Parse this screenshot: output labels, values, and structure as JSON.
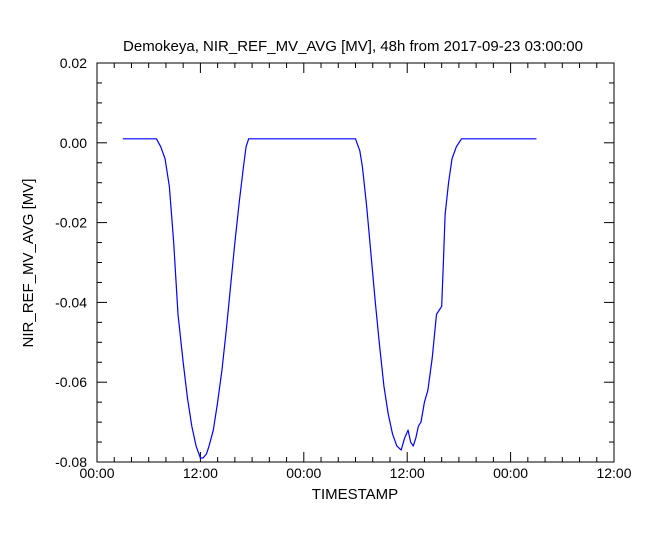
{
  "chart_data": {
    "type": "line",
    "title": "Demokeya, NIR_REF_MV_AVG [MV], 48h from  2017-09-23 03:00:00",
    "xlabel": "TIMESTAMP",
    "ylabel": "NIR_REF_MV_AVG [MV]",
    "x_unit": "hours since 2017-09-23 00:00",
    "xlim": [
      0,
      60
    ],
    "ylim": [
      -0.08,
      0.02
    ],
    "x_ticks": [
      {
        "value": 0,
        "label": "00:00"
      },
      {
        "value": 12,
        "label": "12:00"
      },
      {
        "value": 24,
        "label": "00:00"
      },
      {
        "value": 36,
        "label": "12:00"
      },
      {
        "value": 48,
        "label": "00:00"
      },
      {
        "value": 60,
        "label": "12:00"
      }
    ],
    "y_ticks": [
      {
        "value": -0.08,
        "label": "-0.08"
      },
      {
        "value": -0.06,
        "label": "-0.06"
      },
      {
        "value": -0.04,
        "label": "-0.04"
      },
      {
        "value": -0.02,
        "label": "-0.02"
      },
      {
        "value": 0.0,
        "label": "0.00"
      },
      {
        "value": 0.02,
        "label": "0.02"
      }
    ],
    "x_minor_step": 2,
    "y_minor_step": 0.005,
    "grid": false,
    "series": [
      {
        "color": "#0000ff",
        "x": [
          3.0,
          6.9,
          7.4,
          7.9,
          8.4,
          8.9,
          9.4,
          10.0,
          10.5,
          11.0,
          11.5,
          12.0,
          12.3,
          12.7,
          13.0,
          13.5,
          14.0,
          14.5,
          15.0,
          15.5,
          16.0,
          16.5,
          17.0,
          17.3,
          17.6,
          18.0,
          22.0,
          30.0,
          30.5,
          30.8,
          31.3,
          31.8,
          32.3,
          32.8,
          33.3,
          33.8,
          34.3,
          34.8,
          35.3,
          35.7,
          36.1,
          36.4,
          36.7,
          37.0,
          37.3,
          37.6,
          38.0,
          38.4,
          38.9,
          39.4,
          39.7,
          40.0,
          40.2,
          40.4,
          40.8,
          41.2,
          41.7,
          42.0,
          42.3,
          43.0,
          51.0
        ],
        "y": [
          0.001,
          0.001,
          -0.001,
          -0.004,
          -0.011,
          -0.025,
          -0.043,
          -0.055,
          -0.064,
          -0.071,
          -0.076,
          -0.079,
          -0.079,
          -0.078,
          -0.076,
          -0.072,
          -0.065,
          -0.057,
          -0.047,
          -0.036,
          -0.025,
          -0.015,
          -0.006,
          -0.001,
          0.001,
          0.001,
          0.001,
          0.001,
          -0.002,
          -0.006,
          -0.016,
          -0.028,
          -0.04,
          -0.051,
          -0.061,
          -0.068,
          -0.073,
          -0.076,
          -0.077,
          -0.074,
          -0.072,
          -0.075,
          -0.076,
          -0.074,
          -0.071,
          -0.07,
          -0.065,
          -0.062,
          -0.054,
          -0.043,
          -0.042,
          -0.041,
          -0.03,
          -0.018,
          -0.01,
          -0.004,
          -0.001,
          0.0,
          0.001,
          0.001,
          0.001
        ]
      }
    ]
  }
}
